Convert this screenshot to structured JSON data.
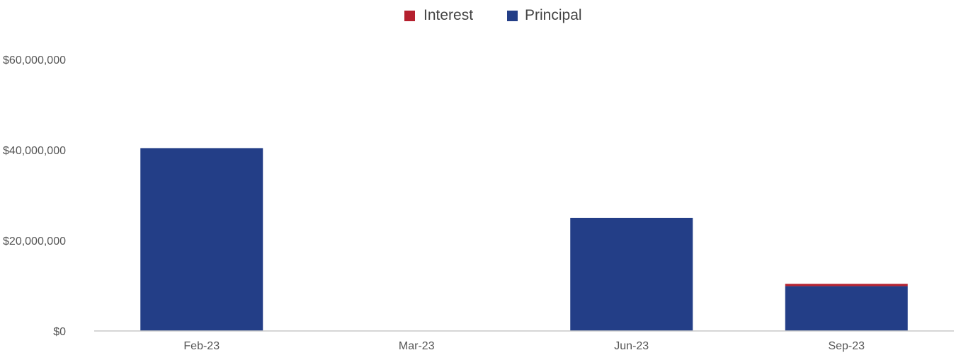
{
  "chart_data": {
    "type": "bar",
    "stacked": true,
    "categories": [
      "Feb-23",
      "Mar-23",
      "Jun-23",
      "Sep-23"
    ],
    "series": [
      {
        "name": "Principal",
        "color": "#233e87",
        "values": [
          40400000,
          0,
          25000000,
          9900000
        ]
      },
      {
        "name": "Interest",
        "color": "#b5202e",
        "values": [
          0,
          0,
          0,
          500000
        ]
      }
    ],
    "legend": {
      "position": "top-center",
      "order": [
        "Interest",
        "Principal"
      ]
    },
    "ylim": [
      0,
      60000000
    ],
    "y_ticks": [
      0,
      20000000,
      40000000,
      60000000
    ],
    "y_tick_labels": [
      "$0",
      "$20,000,000",
      "$40,000,000",
      "$60,000,000"
    ],
    "grid": false,
    "title": "",
    "xlabel": "",
    "ylabel": ""
  }
}
